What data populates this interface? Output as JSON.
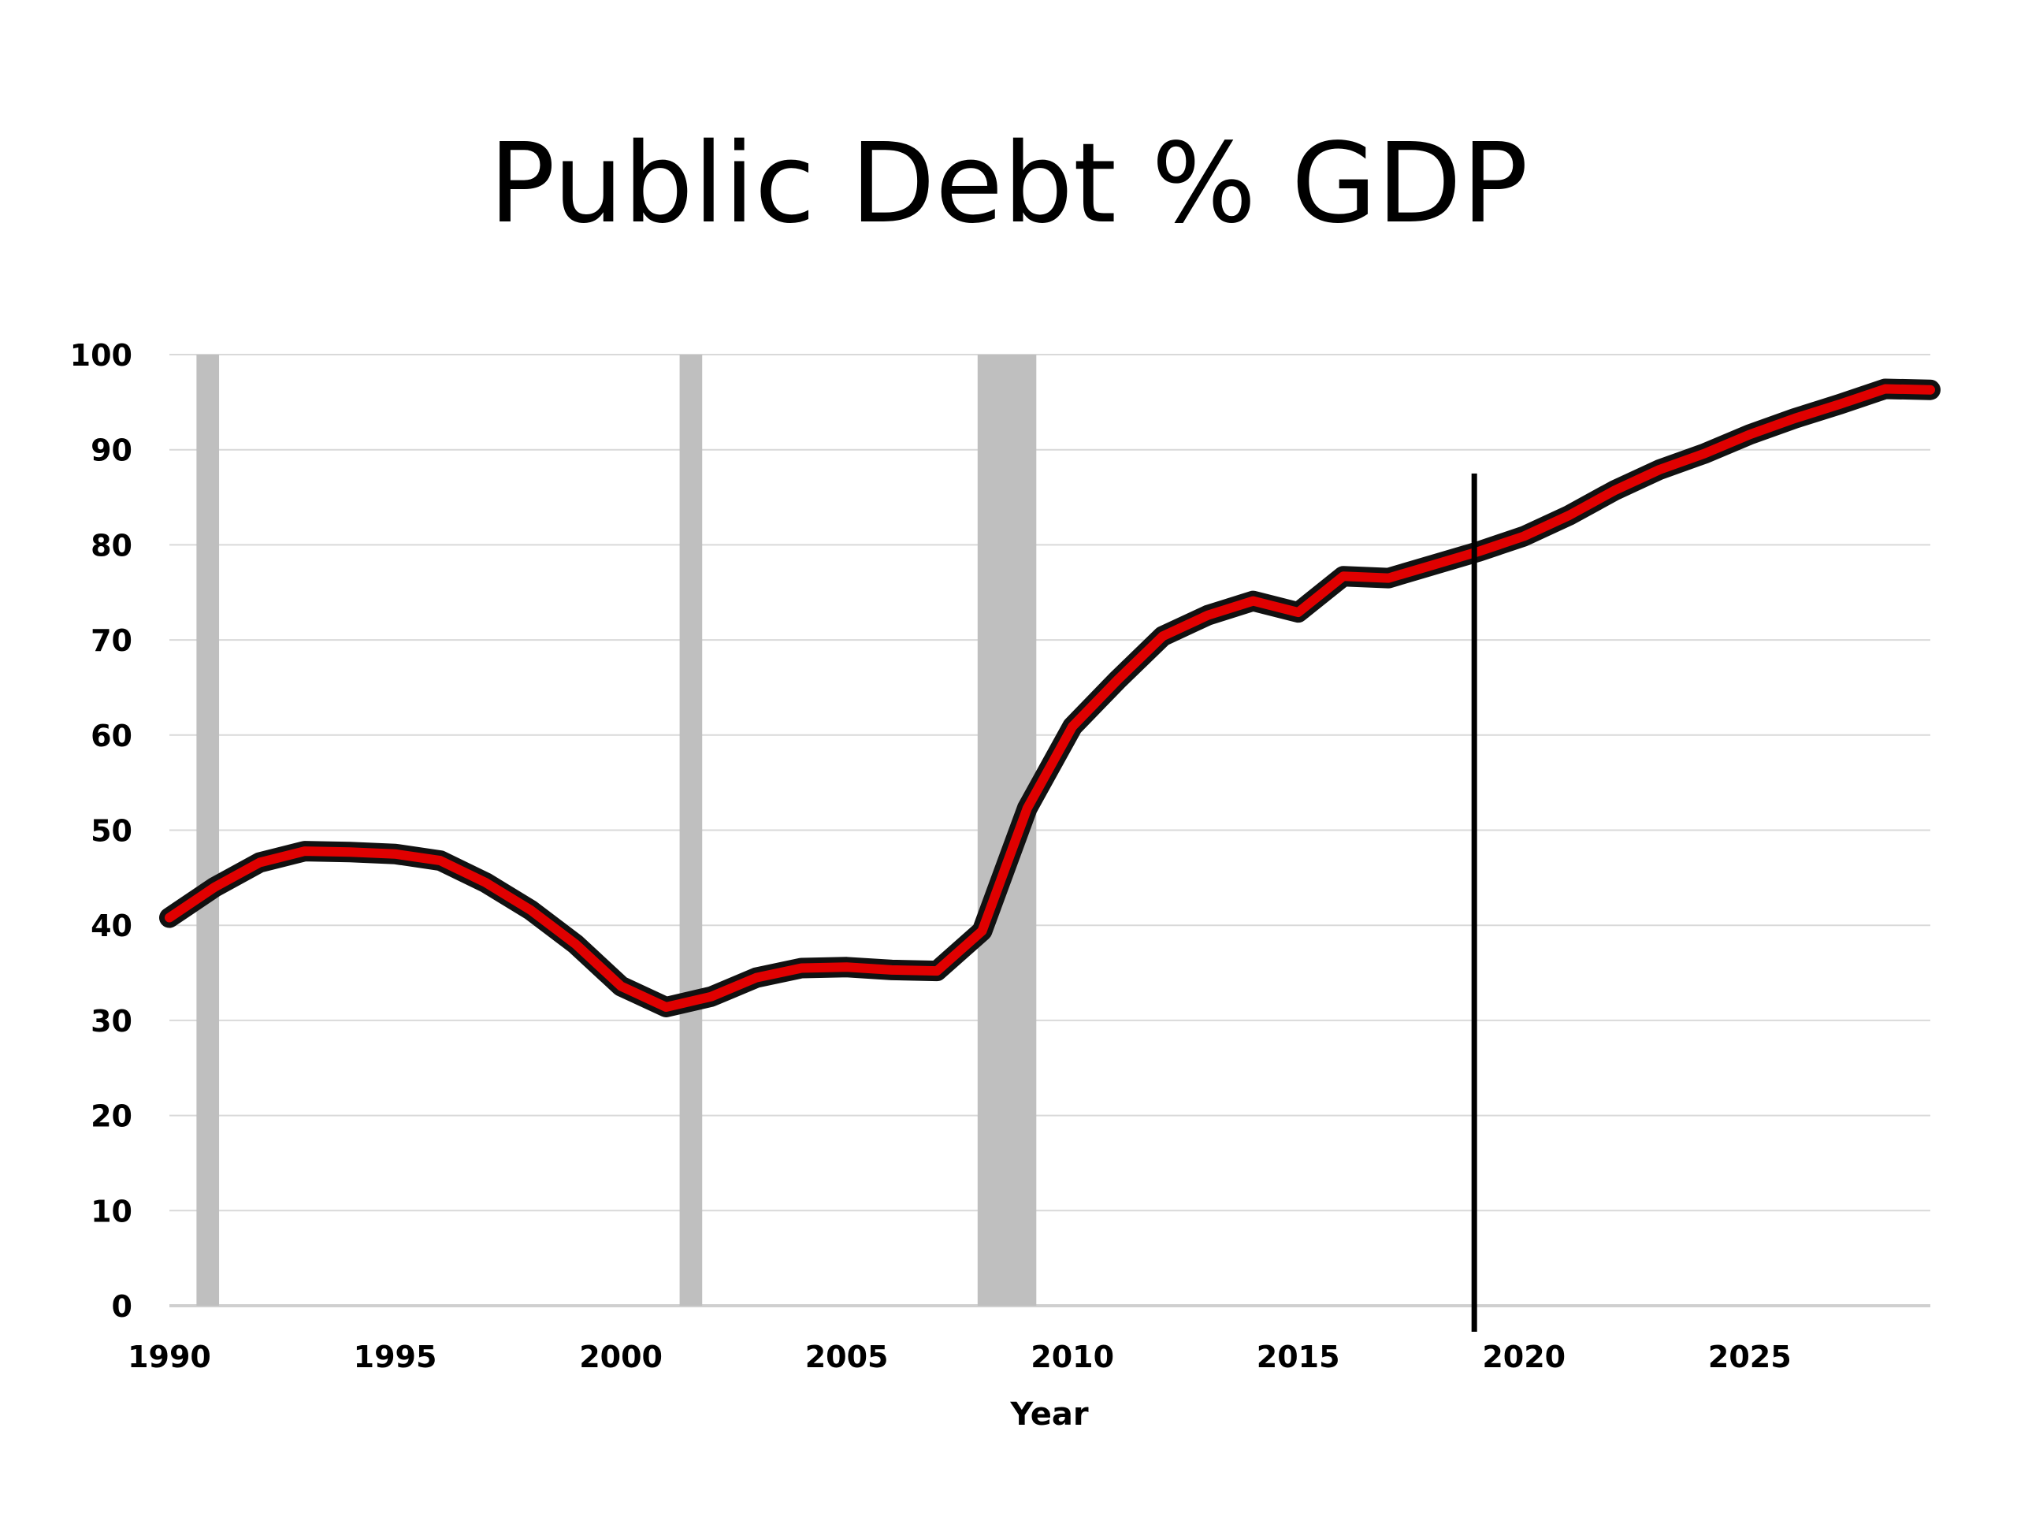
{
  "chart_data": {
    "type": "line",
    "title": "Public Debt % GDP",
    "xlabel": "Year",
    "ylabel": "",
    "xlim": [
      1990,
      2029
    ],
    "ylim": [
      0,
      100
    ],
    "yticks": [
      0,
      10,
      20,
      30,
      40,
      50,
      60,
      70,
      80,
      90,
      100
    ],
    "xticks": [
      1990,
      1995,
      2000,
      2005,
      2010,
      2015,
      2020,
      2025
    ],
    "grid": "horizontal",
    "recession_bands": [
      {
        "start": 1990.6,
        "end": 1991.1
      },
      {
        "start": 2001.3,
        "end": 2001.8
      },
      {
        "start": 2007.9,
        "end": 2009.2
      }
    ],
    "vertical_marker": {
      "x": 2018.9,
      "y_top": 87.5
    },
    "colors": {
      "line_fill": "#e00000",
      "line_outline": "#111111",
      "band": "#bfbfbf",
      "grid": "#d9d9d9",
      "marker": "#000000"
    },
    "series": [
      {
        "x": [
          1990,
          1991,
          1992,
          1993,
          1994,
          1995,
          1996,
          1997,
          1998,
          1999,
          2000,
          2001,
          2002,
          2003,
          2004,
          2005,
          2006,
          2007,
          2008,
          2009,
          2010,
          2011,
          2012,
          2013,
          2014,
          2015,
          2016,
          2017,
          2018,
          2019,
          2020,
          2021,
          2022,
          2023,
          2024,
          2025,
          2026,
          2027,
          2028,
          2029
        ],
        "values": [
          40.8,
          44.0,
          46.6,
          47.8,
          47.7,
          47.5,
          46.8,
          44.5,
          41.6,
          38.0,
          33.6,
          31.4,
          32.5,
          34.5,
          35.5,
          35.6,
          35.3,
          35.2,
          39.4,
          52.3,
          60.9,
          65.8,
          70.4,
          72.6,
          74.1,
          72.9,
          76.7,
          76.5,
          77.9,
          79.3,
          80.9,
          83.1,
          85.7,
          87.9,
          89.6,
          91.6,
          93.3,
          94.8,
          96.4,
          96.3
        ]
      }
    ]
  }
}
